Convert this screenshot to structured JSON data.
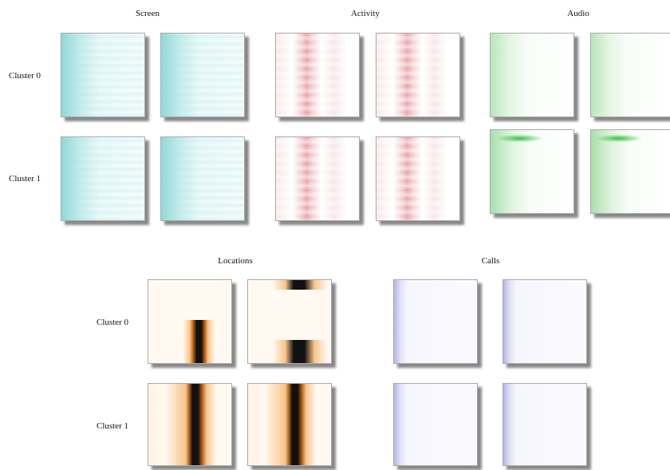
{
  "top_row": {
    "titles": [
      "Screen",
      "Activity",
      "Audio"
    ],
    "row_labels": [
      "Cluster 0",
      "Cluster 1"
    ]
  },
  "bottom_row": {
    "titles": [
      "Locations",
      "Calls"
    ],
    "row_labels": [
      "Cluster 0",
      "Cluster 1"
    ]
  }
}
